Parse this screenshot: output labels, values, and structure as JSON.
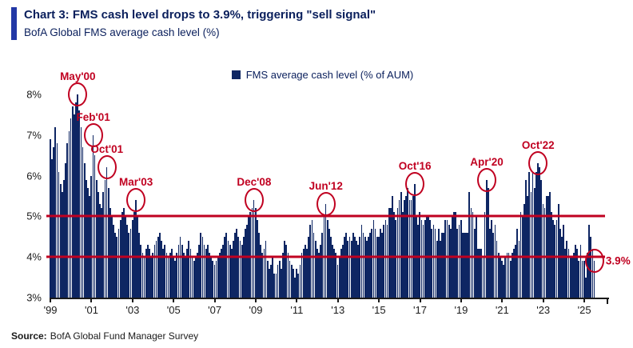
{
  "header": {
    "title": "Chart 3: FMS cash level drops to 3.9%, triggering \"sell signal\"",
    "subtitle": "BofA Global FMS average cash level (%)"
  },
  "legend": {
    "label": "FMS average cash level (% of AUM)"
  },
  "source": {
    "prefix": "Source:",
    "text": "BofA Global Fund Manager Survey"
  },
  "colors": {
    "bar": "#0e2663",
    "signal_line": "#c00020",
    "annotation": "#c00020",
    "title": "#0a1f5c",
    "accent_bar": "#2238a6",
    "axis_text": "#1a1a1a"
  },
  "chart_data": {
    "type": "bar",
    "title": "BofA Global FMS average cash level (%)",
    "xlabel": "",
    "ylabel": "FMS average cash level (% of AUM)",
    "grid": false,
    "legend_position": "top-center",
    "start_year": 1999,
    "frequency": "monthly",
    "ylim": [
      3,
      8
    ],
    "yticks": [
      {
        "label": "8%",
        "value": 8
      },
      {
        "label": "7%",
        "value": 7
      },
      {
        "label": "6%",
        "value": 6
      },
      {
        "label": "5%",
        "value": 5
      },
      {
        "label": "4%",
        "value": 4
      },
      {
        "label": "3%",
        "value": 3
      }
    ],
    "xticks": [
      {
        "label": "'99",
        "month_index": 0
      },
      {
        "label": "'01",
        "month_index": 24
      },
      {
        "label": "'03",
        "month_index": 48
      },
      {
        "label": "'05",
        "month_index": 72
      },
      {
        "label": "'07",
        "month_index": 96
      },
      {
        "label": "'09",
        "month_index": 120
      },
      {
        "label": "'11",
        "month_index": 144
      },
      {
        "label": "'13",
        "month_index": 168
      },
      {
        "label": "'15",
        "month_index": 192
      },
      {
        "label": "'17",
        "month_index": 216
      },
      {
        "label": "'19",
        "month_index": 240
      },
      {
        "label": "'21",
        "month_index": 264
      },
      {
        "label": "'23",
        "month_index": 288
      },
      {
        "label": "'25",
        "month_index": 312
      }
    ],
    "signal_lines": [
      5,
      4
    ],
    "annotations": [
      {
        "label": "May'00",
        "month_index": 16,
        "value": 8.0,
        "label_pos": "top"
      },
      {
        "label": "Feb'01",
        "month_index": 25,
        "value": 7.0,
        "label_pos": "top"
      },
      {
        "label": "Oct'01",
        "month_index": 33,
        "value": 6.2,
        "label_pos": "top"
      },
      {
        "label": "Mar'03",
        "month_index": 50,
        "value": 5.4,
        "label_pos": "top"
      },
      {
        "label": "Dec'08",
        "month_index": 119,
        "value": 5.4,
        "label_pos": "top"
      },
      {
        "label": "Jun'12",
        "month_index": 161,
        "value": 5.3,
        "label_pos": "top"
      },
      {
        "label": "Oct'16",
        "month_index": 213,
        "value": 5.8,
        "label_pos": "top"
      },
      {
        "label": "Apr'20",
        "month_index": 255,
        "value": 5.9,
        "label_pos": "top"
      },
      {
        "label": "Oct'22",
        "month_index": 285,
        "value": 6.3,
        "label_pos": "top"
      },
      {
        "label": "3.9%",
        "month_index": 318,
        "value": 3.9,
        "label_pos": "right"
      }
    ],
    "values": [
      6.9,
      6.4,
      6.7,
      7.2,
      6.8,
      6.1,
      5.8,
      5.6,
      5.9,
      6.3,
      6.8,
      7.1,
      7.4,
      7.7,
      7.5,
      7.8,
      8.0,
      7.6,
      7.2,
      6.7,
      6.3,
      5.9,
      5.7,
      5.5,
      6.0,
      7.0,
      6.5,
      5.9,
      5.6,
      5.3,
      5.2,
      5.6,
      5.9,
      6.2,
      5.7,
      5.2,
      5.0,
      4.8,
      4.6,
      4.5,
      4.7,
      4.9,
      5.1,
      5.2,
      5.0,
      4.8,
      4.6,
      4.7,
      4.9,
      5.1,
      5.4,
      5.0,
      4.6,
      4.3,
      4.1,
      4.0,
      4.2,
      4.3,
      4.2,
      4.0,
      4.1,
      4.3,
      4.4,
      4.5,
      4.6,
      4.4,
      4.2,
      4.3,
      4.1,
      4.0,
      4.1,
      4.2,
      4.0,
      3.9,
      4.1,
      4.3,
      4.5,
      4.3,
      4.1,
      4.0,
      4.2,
      4.4,
      4.2,
      4.0,
      3.9,
      4.0,
      4.1,
      4.3,
      4.6,
      4.5,
      4.3,
      4.2,
      4.3,
      4.1,
      4.0,
      3.9,
      3.8,
      3.9,
      4.0,
      4.1,
      4.2,
      4.3,
      4.5,
      4.6,
      4.4,
      4.3,
      4.2,
      4.4,
      4.6,
      4.7,
      4.5,
      4.4,
      4.3,
      4.5,
      4.7,
      4.8,
      5.0,
      5.1,
      5.2,
      5.4,
      5.2,
      4.9,
      4.6,
      4.3,
      4.1,
      4.2,
      4.4,
      3.9,
      3.7,
      3.8,
      4.0,
      3.6,
      3.6,
      3.8,
      3.9,
      3.7,
      4.1,
      4.4,
      4.3,
      4.1,
      3.9,
      3.8,
      3.7,
      3.5,
      3.7,
      3.6,
      3.8,
      4.1,
      4.2,
      4.3,
      4.2,
      4.5,
      4.8,
      4.9,
      4.6,
      4.4,
      4.2,
      4.1,
      4.3,
      4.6,
      5.0,
      5.3,
      4.9,
      4.7,
      4.5,
      4.3,
      4.2,
      4.1,
      3.8,
      4.0,
      4.2,
      4.3,
      4.5,
      4.6,
      4.4,
      4.5,
      4.4,
      4.6,
      4.5,
      4.4,
      4.3,
      4.5,
      4.8,
      4.6,
      4.5,
      4.4,
      4.5,
      4.6,
      4.7,
      4.9,
      4.7,
      4.5,
      4.5,
      4.7,
      4.6,
      4.8,
      4.9,
      4.8,
      5.2,
      5.2,
      5.5,
      5.1,
      4.9,
      5.2,
      5.4,
      5.6,
      5.1,
      5.4,
      5.5,
      5.7,
      5.4,
      5.4,
      5.5,
      5.8,
      5.0,
      4.8,
      5.1,
      4.9,
      4.8,
      4.9,
      5.0,
      5.0,
      4.9,
      4.7,
      4.8,
      4.7,
      4.4,
      4.7,
      4.4,
      4.6,
      4.6,
      4.9,
      4.9,
      4.8,
      4.7,
      5.0,
      5.1,
      5.1,
      4.7,
      4.8,
      4.9,
      4.6,
      4.6,
      4.6,
      4.6,
      5.6,
      5.2,
      5.1,
      4.7,
      5.0,
      4.2,
      4.2,
      4.2,
      4.0,
      5.1,
      5.9,
      5.7,
      4.7,
      4.9,
      4.6,
      4.8,
      4.4,
      4.1,
      4.0,
      3.9,
      3.8,
      4.0,
      4.1,
      4.1,
      3.9,
      4.1,
      4.2,
      4.3,
      4.7,
      4.4,
      5.1,
      5.0,
      5.3,
      5.9,
      5.5,
      6.1,
      5.6,
      6.1,
      5.7,
      6.1,
      6.3,
      6.2,
      5.9,
      5.3,
      5.2,
      5.5,
      5.5,
      5.6,
      5.1,
      4.9,
      4.8,
      4.9,
      5.3,
      4.7,
      4.5,
      4.8,
      4.2,
      4.4,
      4.2,
      4.0,
      4.0,
      4.1,
      4.3,
      4.2,
      3.9,
      4.3,
      3.9,
      3.9,
      3.5,
      4.1,
      4.8,
      4.5,
      4.2,
      3.9
    ]
  }
}
